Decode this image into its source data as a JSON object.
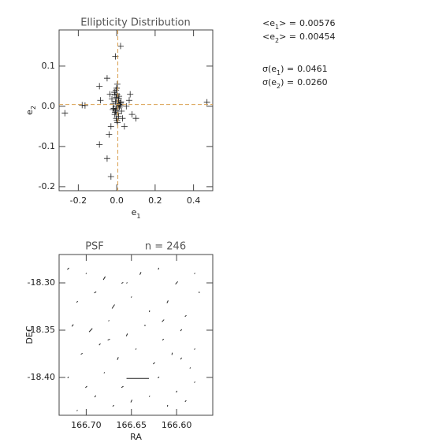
{
  "chart_data": [
    {
      "type": "scatter",
      "title": "Ellipticity Distribution",
      "x_label": "e",
      "x_label_sub": "1",
      "y_label": "e",
      "y_label_sub": "2",
      "xlim": [
        -0.3,
        0.5
      ],
      "xticks": [
        -0.2,
        {
          "value": 0,
          "label": "0.0"
        },
        0.2,
        0.4
      ],
      "ylim": [
        -0.21,
        0.19
      ],
      "yticks": [
        -0.2,
        -0.1,
        {
          "value": 0,
          "label": "0.0"
        },
        0.1
      ],
      "color": "#222",
      "mean_line_color": "#d9a050",
      "x": [
        -0.007,
        0.02,
        -0.27,
        -0.18,
        -0.165,
        -0.09,
        -0.05,
        -0.09,
        -0.05,
        -0.03,
        0.47,
        0.1,
        -0.085,
        0.07,
        0.065,
        0.08,
        -0.035,
        -0.03,
        0.04,
        -0.04,
        0.03,
        0.05,
        0.0,
        0.005,
        -0.005,
        0.01,
        -0.01,
        0.015,
        -0.015,
        0.002,
        -0.002,
        0.008,
        -0.008,
        0.012,
        0.0,
        0.004,
        -0.004,
        0.02,
        -0.02,
        0.006,
        -0.006,
        0.025,
        -0.025,
        0.01,
        -0.012,
        0.003,
        0.018,
        -0.018,
        0.0,
        0.007,
        -0.003,
        0.014,
        -0.009,
        0.022,
        0.001,
        0.011
      ],
      "y": [
        0.124,
        0.15,
        -0.017,
        0.003,
        0.002,
        0.05,
        0.07,
        -0.095,
        -0.13,
        -0.175,
        0.01,
        -0.03,
        0.015,
        0.03,
        0.015,
        -0.02,
        0.03,
        -0.05,
        -0.05,
        -0.07,
        -0.03,
        0.0,
        0.0,
        0.01,
        -0.01,
        0.02,
        -0.02,
        0.005,
        -0.005,
        0.03,
        -0.03,
        0.015,
        -0.015,
        0.025,
        0.045,
        -0.04,
        0.04,
        0.008,
        -0.008,
        0.0,
        0.012,
        -0.012,
        0.018,
        -0.025,
        0.035,
        0.055,
        0.002,
        0.006,
        -0.006,
        -0.018,
        0.022,
        -0.002,
        0.028,
        0.011,
        -0.035,
        0.004
      ],
      "stats": [
        {
          "before": "<e",
          "sub": "1",
          "after": "> =",
          "value": 0.00576
        },
        {
          "before": "<e",
          "sub": "2",
          "after": "> =",
          "value": 0.00454
        },
        {
          "before": "σ(e",
          "sub": "1",
          "after": ") =",
          "value": 0.0461
        },
        {
          "before": "σ(e",
          "sub": "2",
          "after": ") =",
          "value": 0.026,
          "value_label": "0.0260"
        }
      ]
    },
    {
      "type": "whisker",
      "title": "PSF",
      "subtitle": "n = 246",
      "x_label": "RA",
      "y_label": "DEC",
      "xlim": [
        166.73,
        166.56
      ],
      "xticks": [
        {
          "value": 166.7,
          "label": "166.70"
        },
        166.65,
        {
          "value": 166.6,
          "label": "166.60"
        }
      ],
      "ylim": [
        -18.44,
        -18.27
      ],
      "yticks": [
        {
          "value": -18.4,
          "label": "-18.40"
        },
        -18.35,
        {
          "value": -18.3,
          "label": "-18.30"
        }
      ],
      "color": "#222",
      "ra": [
        166.72,
        166.7,
        166.68,
        166.66,
        166.64,
        166.62,
        166.6,
        166.58,
        166.575,
        166.71,
        166.69,
        166.67,
        166.65,
        166.63,
        166.61,
        166.59,
        166.715,
        166.695,
        166.675,
        166.655,
        166.635,
        166.615,
        166.595,
        166.58,
        166.705,
        166.685,
        166.665,
        166.645,
        166.625,
        166.605,
        166.585,
        166.72,
        166.7,
        166.68,
        166.66,
        166.643,
        166.62,
        166.6,
        166.58,
        166.69,
        166.67,
        166.65,
        166.63,
        166.61,
        166.59,
        166.71,
        166.675,
        166.655,
        166.615,
        166.595
      ],
      "dec": [
        -18.285,
        -18.29,
        -18.295,
        -18.3,
        -18.29,
        -18.285,
        -18.3,
        -18.29,
        -18.31,
        -18.32,
        -18.31,
        -18.325,
        -18.315,
        -18.33,
        -18.32,
        -18.335,
        -18.345,
        -18.35,
        -18.34,
        -18.355,
        -18.345,
        -18.36,
        -18.35,
        -18.37,
        -18.375,
        -18.365,
        -18.38,
        -18.37,
        -18.385,
        -18.375,
        -18.39,
        -18.4,
        -18.41,
        -18.395,
        -18.41,
        -18.401,
        -18.4,
        -18.415,
        -18.405,
        -18.42,
        -18.43,
        -18.425,
        -18.42,
        -18.43,
        -18.425,
        -18.435,
        -18.36,
        -18.3,
        -18.34,
        -18.38
      ],
      "e": [
        0.02,
        0.01,
        0.04,
        0.015,
        0.03,
        0.02,
        0.035,
        0.01,
        0.02,
        0.015,
        0.02,
        0.05,
        0.01,
        0.02,
        0.03,
        0.015,
        0.025,
        0.05,
        0.01,
        0.03,
        0.02,
        0.015,
        0.02,
        0.01,
        0.015,
        0.02,
        0.03,
        0.01,
        0.02,
        0.025,
        0.01,
        0.015,
        0.02,
        0.01,
        0.02,
        0.25,
        0.015,
        0.02,
        0.01,
        0.02,
        0.015,
        0.03,
        0.01,
        0.02,
        0.015,
        0.01,
        0.02,
        0.01,
        0.03,
        0.02
      ],
      "angle": [
        60,
        90,
        70,
        45,
        80,
        100,
        60,
        90,
        120,
        75,
        45,
        65,
        90,
        110,
        80,
        60,
        70,
        55,
        90,
        80,
        120,
        60,
        75,
        90,
        45,
        70,
        85,
        90,
        60,
        100,
        90,
        80,
        60,
        90,
        45,
        0,
        70,
        95,
        90,
        75,
        60,
        80,
        90,
        110,
        70,
        90,
        30,
        90,
        60,
        80
      ]
    }
  ]
}
